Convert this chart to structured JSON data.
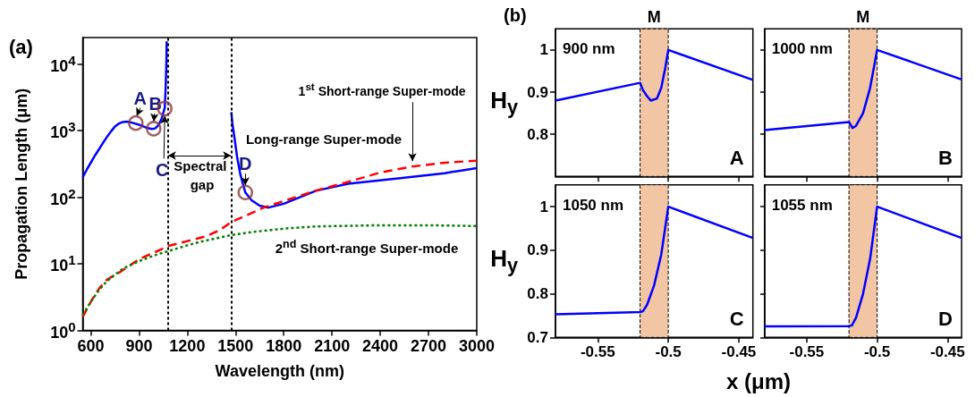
{
  "chart_data": [
    {
      "type": "line",
      "title": "(a)",
      "xlabel": "Wavelength (nm)",
      "ylabel": "Propagation Length (μm)",
      "log": "y",
      "xlim": [
        550,
        3000
      ],
      "xticks": [
        600,
        900,
        1200,
        1500,
        1800,
        2100,
        2400,
        2700,
        3000
      ],
      "ylim": [
        1,
        25000
      ],
      "yticks": [
        {
          "value": 1,
          "label": "10$^{0}$"
        },
        {
          "value": 10,
          "label": "10$^{1}$"
        },
        {
          "value": 100,
          "label": "10$^{2}$"
        },
        {
          "value": 1000,
          "label": "10$^{3}$"
        },
        {
          "value": 10000,
          "label": "10$^{4}$"
        }
      ],
      "grid": false,
      "series": [
        {
          "color": "#0000ff",
          "line_style": "solid",
          "x": [
            550,
            575,
            600,
            625,
            650,
            675,
            700,
            725,
            750,
            775,
            800,
            825,
            850,
            900,
            950,
            980,
            1000,
            1020,
            1040,
            1060,
            1065,
            1070,
            1072,
            1270,
            1474,
            1480,
            1490,
            1500,
            1510,
            1530,
            1561,
            1600,
            1650,
            1705,
            1800,
            1900,
            2000,
            2200,
            2500,
            2800,
            3000
          ],
          "values": [
            200,
            260,
            330,
            420,
            520,
            650,
            800,
            970,
            1150,
            1280,
            1350,
            1370,
            1330,
            1230,
            1100,
            1060,
            1080,
            1200,
            1500,
            2200,
            4000,
            10000,
            22000,
            null,
            1900,
            1300,
            900,
            600,
            400,
            220,
            118,
            90,
            75,
            70,
            80,
            100,
            125,
            160,
            190,
            230,
            275
          ]
        },
        {
          "color": "#ff0000",
          "line_style": "dashed",
          "x": [
            550,
            600,
            650,
            700,
            788,
            906,
            1000,
            1083,
            1200,
            1320,
            1400,
            1478,
            1580,
            1675,
            1800,
            2010,
            2200,
            2400,
            2600,
            2800,
            3000
          ],
          "values": [
            1.6,
            2.7,
            4.2,
            5.8,
            7.7,
            12,
            15,
            18.6,
            22,
            26,
            32,
            43,
            55,
            70,
            88,
            128,
            170,
            235,
            290,
            330,
            355
          ]
        },
        {
          "color": "#008000",
          "line_style": "dotted",
          "x": [
            550,
            600,
            650,
            700,
            800,
            900,
            1000,
            1080,
            1200,
            1300,
            1472,
            1600,
            1813,
            2000,
            2405,
            2700,
            3000
          ],
          "values": [
            1.7,
            2.7,
            4,
            5.5,
            8.5,
            11,
            13.5,
            15.5,
            19,
            22,
            27,
            30,
            34,
            36.5,
            38,
            38,
            37
          ]
        },
        {
          "type": "scatter",
          "marker": "circle",
          "color": "#8b3a3a",
          "x": [
            880,
            991,
            1060,
            1561
          ],
          "values": [
            1300,
            1070,
            2150,
            118
          ]
        }
      ],
      "ref_lines": [
        {
          "axis": "x",
          "value": 1080,
          "color": "#000000",
          "line_style": "dotted"
        },
        {
          "axis": "x",
          "value": 1472,
          "color": "#000000",
          "line_style": "dotted"
        }
      ],
      "annotations": [
        {
          "text": "A",
          "x": 880,
          "y": 1300
        },
        {
          "text": "B",
          "x": 991,
          "y": 1070
        },
        {
          "text": "C",
          "x": 1060,
          "y": 2150
        },
        {
          "text": "D",
          "x": 1561,
          "y": 118
        },
        {
          "text": "1$^{st}$ Short-range Super-mode",
          "x": 2600,
          "y": 290
        },
        "Long-range Super-mode",
        "Spectral gap",
        "2$^{nd}$ Short-range Super-mode"
      ]
    },
    {
      "type": "line",
      "title": "(b)",
      "ylabel": "H$_{y}$",
      "x": [
        -0.58,
        -0.52,
        -0.518,
        -0.515,
        -0.5124,
        -0.508,
        -0.505,
        -0.502,
        -0.5,
        -0.44
      ],
      "series": [
        {
          "color": "#0000ff",
          "values": [
            0.88,
            0.922,
            0.905,
            0.89,
            0.88,
            0.885,
            0.91,
            0.96,
            1.0,
            0.929
          ]
        }
      ],
      "xlim": [
        -0.58,
        -0.44
      ],
      "xticks": [
        -0.55,
        -0.5,
        -0.45
      ],
      "ylim": [
        0.7,
        1.05
      ],
      "yticks": [
        0.8,
        0.9,
        1
      ],
      "tick_labels": "y",
      "bands": [
        {
          "axis": "x",
          "from": -0.52,
          "to": -0.5,
          "label": "M",
          "color": "#f2c6a4"
        }
      ],
      "annotations": [
        "900 nm",
        "A"
      ]
    },
    {
      "type": "line",
      "x": [
        -0.58,
        -0.52,
        -0.5175,
        -0.515,
        -0.51,
        -0.505,
        -0.5,
        -0.44
      ],
      "series": [
        {
          "color": "#0000ff",
          "values": [
            0.81,
            0.829,
            0.815,
            0.82,
            0.85,
            0.91,
            1.0,
            0.93
          ]
        }
      ],
      "xlim": [
        -0.58,
        -0.44
      ],
      "xticks": [
        -0.55,
        -0.5,
        -0.45
      ],
      "ylim": [
        0.7,
        1.05
      ],
      "yticks": [
        0.8,
        0.9,
        1
      ],
      "tick_labels": false,
      "bands": [
        {
          "axis": "x",
          "from": -0.52,
          "to": -0.5,
          "label": "M",
          "color": "#f2c6a4"
        }
      ],
      "annotations": [
        "1000 nm",
        "B"
      ]
    },
    {
      "type": "line",
      "ylabel": "H$_{y}$",
      "xlabel": "x (μm)",
      "x": [
        -0.58,
        -0.52,
        -0.518,
        -0.515,
        -0.51,
        -0.505,
        -0.5,
        -0.44
      ],
      "series": [
        {
          "color": "#0000ff",
          "values": [
            0.753,
            0.758,
            0.76,
            0.775,
            0.82,
            0.89,
            1.0,
            0.928
          ]
        }
      ],
      "xlim": [
        -0.58,
        -0.44
      ],
      "xticks": [
        -0.55,
        -0.5,
        -0.45
      ],
      "ylim": [
        0.7,
        1.05
      ],
      "yticks": [
        0.7,
        0.8,
        0.9,
        1
      ],
      "bands": [
        {
          "axis": "x",
          "from": -0.52,
          "to": -0.5,
          "color": "#f2c6a4"
        }
      ],
      "annotations": [
        "1050 nm",
        "C"
      ]
    },
    {
      "type": "line",
      "x": [
        -0.58,
        -0.52,
        -0.518,
        -0.515,
        -0.51,
        -0.505,
        -0.5,
        -0.44
      ],
      "series": [
        {
          "color": "#0000ff",
          "values": [
            0.725,
            0.726,
            0.727,
            0.745,
            0.8,
            0.88,
            1.0,
            0.928
          ]
        }
      ],
      "xlim": [
        -0.58,
        -0.44
      ],
      "xticks": [
        -0.55,
        -0.5,
        -0.45
      ],
      "ylim": [
        0.7,
        1.05
      ],
      "yticks": [
        0.7,
        0.8,
        0.9,
        1
      ],
      "tick_labels": "x",
      "bands": [
        {
          "axis": "x",
          "from": -0.52,
          "to": -0.5,
          "color": "#f2c6a4"
        }
      ],
      "annotations": [
        "1055 nm",
        "D"
      ]
    }
  ]
}
